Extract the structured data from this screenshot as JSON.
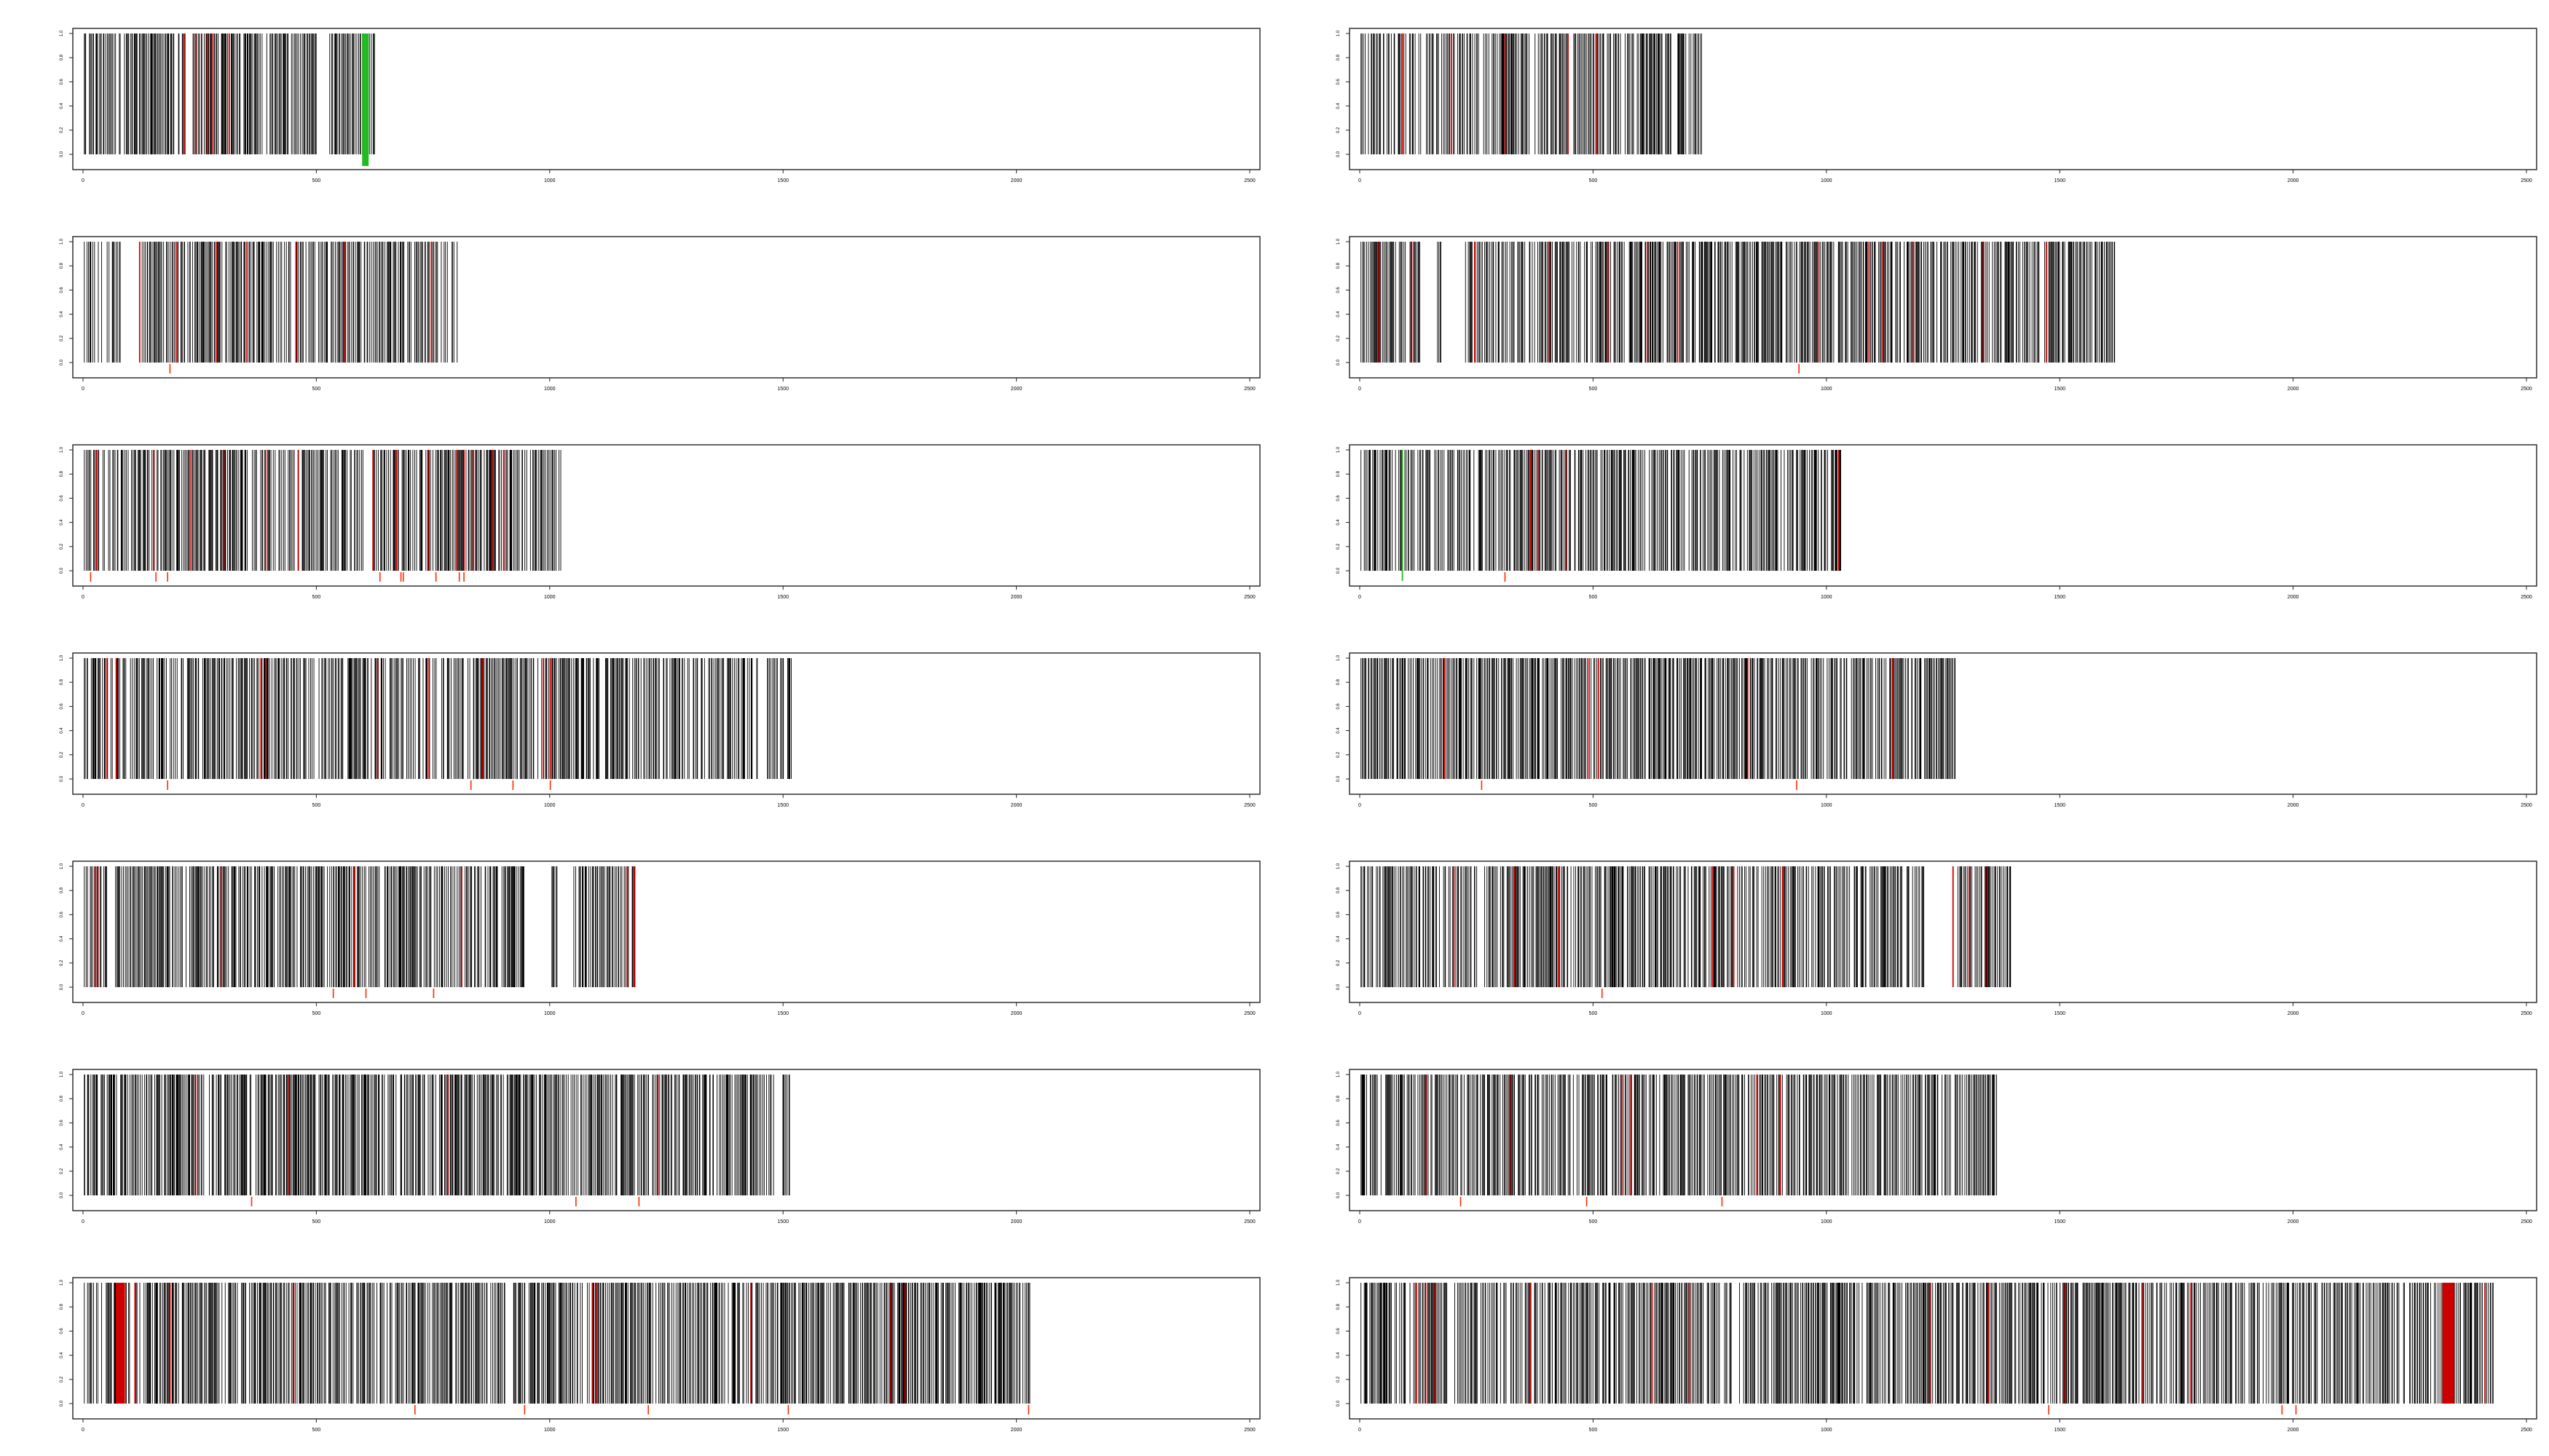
{
  "chart_data": {
    "type": "barcode",
    "layout": {
      "rows": 7,
      "cols": 2
    },
    "colors": {
      "main": "#000000",
      "highlight": "#cc0000",
      "marker": "#ff2a00",
      "green": "#22bb22",
      "axis": "#222222"
    },
    "xlim": [
      0,
      2500
    ],
    "ylim": [
      0,
      1
    ],
    "x_ticks": [
      0,
      500,
      1000,
      1500,
      2000,
      2500
    ],
    "x_tick_labels": [
      "0",
      "500",
      "1000",
      "1500",
      "2000",
      "2500"
    ],
    "y_ticks": [
      0,
      0.2,
      0.4,
      0.6,
      0.8,
      1
    ],
    "y_tick_labels": [
      "0.0",
      "0.2",
      "0.4",
      "0.6",
      "0.8",
      "1.0"
    ],
    "grid": false,
    "legend": "none",
    "panels": [
      {
        "length": 625,
        "gaps": [
          [
            220,
            232
          ],
          [
            500,
            525
          ]
        ],
        "highlights": [
          215,
          240,
          265,
          275,
          312
        ],
        "markers": [],
        "green_bars": [
          [
            598,
            612
          ]
        ],
        "seed": 11
      },
      {
        "length": 735,
        "gaps": [],
        "highlights": [
          90,
          195,
          310,
          445,
          505
        ],
        "markers": [],
        "green_bars": [],
        "seed": 23
      },
      {
        "length": 805,
        "gaps": [
          [
            85,
            125
          ]
        ],
        "highlights": [
          120,
          198,
          285,
          350,
          455,
          560,
          745
        ],
        "markers": [
          185
        ],
        "green_bars": [],
        "seed": 37
      },
      {
        "length": 1620,
        "gaps": [
          [
            130,
            165
          ],
          [
            175,
            220
          ]
        ],
        "highlights": [
          40,
          110,
          245,
          405,
          530,
          615,
          680,
          980,
          1090,
          1120,
          1185,
          1335,
          1470
        ],
        "markers": [
          940
        ],
        "green_bars": [],
        "seed": 41
      },
      {
        "length": 1025,
        "gaps": [
          [
            600,
            620
          ]
        ],
        "highlights": [
          28,
          150,
          230,
          300,
          390,
          460,
          620,
          670,
          740,
          800,
          815,
          835,
          875,
          900
        ],
        "markers": [
          15,
          155,
          180,
          635,
          680,
          685,
          755,
          805,
          815
        ],
        "green_bars": [],
        "seed": 53
      },
      {
        "length": 1035,
        "gaps": [],
        "highlights": [
          365,
          380,
          440,
          1025
        ],
        "markers": [
          310
        ],
        "green_bars": [
          90
        ],
        "seed": 59
      },
      {
        "length": 1520,
        "gaps": [
          [
            1445,
            1460
          ]
        ],
        "highlights": [
          50,
          70,
          380,
          390,
          630,
          740,
          855,
          985,
          1000
        ],
        "markers": [
          180,
          830,
          920,
          1000
        ],
        "green_bars": [],
        "seed": 67
      },
      {
        "length": 1280,
        "gaps": [],
        "highlights": [
          180,
          490,
          510,
          830,
          1140
        ],
        "markers": [
          260,
          935
        ],
        "green_bars": [],
        "seed": 71
      },
      {
        "length": 1185,
        "gaps": [
          [
            955,
            1000
          ],
          [
            1020,
            1050
          ]
        ],
        "highlights": [
          25,
          30,
          295,
          580,
          810,
          1165,
          1180
        ],
        "markers": [
          535,
          605,
          750
        ],
        "green_bars": [],
        "seed": 83
      },
      {
        "length": 1395,
        "gaps": [
          [
            1210,
            1280
          ]
        ],
        "highlights": [
          200,
          330,
          425,
          755,
          800,
          905,
          1270,
          1305,
          1340
        ],
        "markers": [
          518
        ],
        "green_bars": [],
        "seed": 89
      },
      {
        "length": 1515,
        "gaps": [
          [
            1480,
            1490
          ]
        ],
        "highlights": [
          240,
          440,
          780,
          1230
        ],
        "markers": [
          360,
          1055,
          1190
        ],
        "green_bars": [],
        "seed": 97
      },
      {
        "length": 1365,
        "gaps": [],
        "highlights": [
          140,
          320,
          560,
          580,
          850,
          900
        ],
        "markers": [
          215,
          485,
          775
        ],
        "green_bars": [],
        "seed": 101
      },
      {
        "length": 2030,
        "gaps": [
          [
            100,
            110
          ]
        ],
        "highlights": [
          [
            70,
            90
          ],
          110,
          185,
          450,
          1090,
          1100,
          1430,
          1730,
          1760
        ],
        "markers": [
          710,
          945,
          1210,
          1510,
          2025
        ],
        "green_bars": [],
        "seed": 107
      },
      {
        "length": 2430,
        "gaps": [],
        "highlights": [
          120,
          140,
          160,
          365,
          625,
          705,
          1220,
          1345,
          1510,
          1675,
          1780,
          [
            2320,
            2345
          ],
          2410
        ],
        "markers": [
          1475,
          1975,
          2005
        ],
        "green_bars": [],
        "seed": 113
      }
    ]
  }
}
